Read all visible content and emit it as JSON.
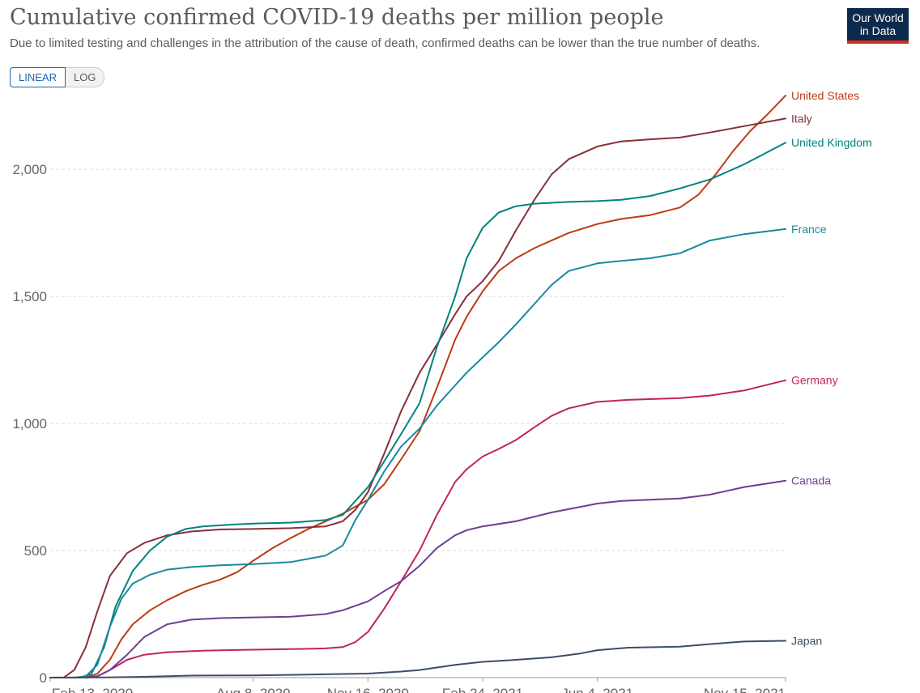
{
  "header": {
    "title": "Cumulative confirmed COVID-19 deaths per million people",
    "subtitle": "Due to limited testing and challenges in the attribution of the cause of death, confirmed deaths can be lower than the true number of deaths.",
    "logo_line1": "Our World",
    "logo_line2": "in Data"
  },
  "controls": {
    "linear_label": "LINEAR",
    "log_label": "LOG",
    "selected": "LINEAR"
  },
  "chart_data": {
    "type": "line",
    "title": "Cumulative confirmed COVID-19 deaths per million people",
    "ylim": [
      0,
      2300
    ],
    "xlim": [
      "2020-02-13",
      "2021-11-15"
    ],
    "yticks": [
      0,
      500,
      1000,
      1500,
      2000
    ],
    "ytick_labels": [
      "0",
      "500",
      "1,000",
      "1,500",
      "2,000"
    ],
    "xticks": [
      "2020-02-13",
      "2020-08-08",
      "2020-11-16",
      "2021-02-24",
      "2021-06-04",
      "2021-11-15"
    ],
    "xtick_labels": [
      "Feb 13, 2020",
      "Aug 8, 2020",
      "Nov 16, 2020",
      "Feb 24, 2021",
      "Jun 4, 2021",
      "Nov 15, 2021"
    ],
    "grid": "horizontal",
    "legend": "right-inline",
    "series": [
      {
        "name": "United States",
        "color": "#be3b14",
        "points": [
          [
            "2020-02-13",
            0
          ],
          [
            "2020-03-01",
            0
          ],
          [
            "2020-03-15",
            1
          ],
          [
            "2020-03-25",
            15
          ],
          [
            "2020-04-05",
            70
          ],
          [
            "2020-04-15",
            150
          ],
          [
            "2020-04-25",
            210
          ],
          [
            "2020-05-10",
            265
          ],
          [
            "2020-05-25",
            305
          ],
          [
            "2020-06-10",
            340
          ],
          [
            "2020-06-25",
            365
          ],
          [
            "2020-07-10",
            385
          ],
          [
            "2020-07-25",
            415
          ],
          [
            "2020-08-08",
            460
          ],
          [
            "2020-08-25",
            510
          ],
          [
            "2020-09-10",
            550
          ],
          [
            "2020-09-25",
            585
          ],
          [
            "2020-10-10",
            615
          ],
          [
            "2020-10-25",
            645
          ],
          [
            "2020-11-16",
            700
          ],
          [
            "2020-11-30",
            760
          ],
          [
            "2020-12-15",
            860
          ],
          [
            "2020-12-31",
            970
          ],
          [
            "2021-01-15",
            1140
          ],
          [
            "2021-01-31",
            1330
          ],
          [
            "2021-02-10",
            1420
          ],
          [
            "2021-02-24",
            1520
          ],
          [
            "2021-03-10",
            1600
          ],
          [
            "2021-03-25",
            1650
          ],
          [
            "2021-04-10",
            1690
          ],
          [
            "2021-04-25",
            1720
          ],
          [
            "2021-05-10",
            1750
          ],
          [
            "2021-06-04",
            1785
          ],
          [
            "2021-06-25",
            1805
          ],
          [
            "2021-07-20",
            1820
          ],
          [
            "2021-08-15",
            1850
          ],
          [
            "2021-08-31",
            1900
          ],
          [
            "2021-09-15",
            1980
          ],
          [
            "2021-09-30",
            2070
          ],
          [
            "2021-10-15",
            2150
          ],
          [
            "2021-10-31",
            2220
          ],
          [
            "2021-11-15",
            2290
          ]
        ]
      },
      {
        "name": "Italy",
        "color": "#883039",
        "points": [
          [
            "2020-02-13",
            0
          ],
          [
            "2020-02-25",
            1
          ],
          [
            "2020-03-05",
            30
          ],
          [
            "2020-03-15",
            120
          ],
          [
            "2020-03-25",
            260
          ],
          [
            "2020-04-05",
            400
          ],
          [
            "2020-04-20",
            490
          ],
          [
            "2020-05-05",
            530
          ],
          [
            "2020-05-25",
            560
          ],
          [
            "2020-06-15",
            575
          ],
          [
            "2020-07-10",
            583
          ],
          [
            "2020-08-08",
            585
          ],
          [
            "2020-09-10",
            588
          ],
          [
            "2020-10-10",
            595
          ],
          [
            "2020-10-25",
            615
          ],
          [
            "2020-11-05",
            660
          ],
          [
            "2020-11-16",
            730
          ],
          [
            "2020-11-30",
            880
          ],
          [
            "2020-12-15",
            1050
          ],
          [
            "2020-12-31",
            1200
          ],
          [
            "2021-01-15",
            1310
          ],
          [
            "2021-01-31",
            1430
          ],
          [
            "2021-02-10",
            1500
          ],
          [
            "2021-02-24",
            1560
          ],
          [
            "2021-03-10",
            1640
          ],
          [
            "2021-03-25",
            1760
          ],
          [
            "2021-04-10",
            1880
          ],
          [
            "2021-04-25",
            1980
          ],
          [
            "2021-05-10",
            2040
          ],
          [
            "2021-06-04",
            2090
          ],
          [
            "2021-06-25",
            2110
          ],
          [
            "2021-07-20",
            2118
          ],
          [
            "2021-08-15",
            2125
          ],
          [
            "2021-09-10",
            2145
          ],
          [
            "2021-10-10",
            2170
          ],
          [
            "2021-11-15",
            2200
          ]
        ]
      },
      {
        "name": "United Kingdom",
        "color": "#00847e",
        "points": [
          [
            "2020-02-13",
            0
          ],
          [
            "2020-03-10",
            0
          ],
          [
            "2020-03-20",
            15
          ],
          [
            "2020-03-31",
            120
          ],
          [
            "2020-04-10",
            280
          ],
          [
            "2020-04-25",
            420
          ],
          [
            "2020-05-10",
            500
          ],
          [
            "2020-05-25",
            555
          ],
          [
            "2020-06-10",
            585
          ],
          [
            "2020-06-25",
            595
          ],
          [
            "2020-07-20",
            602
          ],
          [
            "2020-08-08",
            606
          ],
          [
            "2020-09-10",
            610
          ],
          [
            "2020-10-10",
            620
          ],
          [
            "2020-10-25",
            640
          ],
          [
            "2020-11-16",
            750
          ],
          [
            "2020-11-30",
            850
          ],
          [
            "2020-12-15",
            960
          ],
          [
            "2020-12-31",
            1080
          ],
          [
            "2021-01-15",
            1300
          ],
          [
            "2021-01-31",
            1500
          ],
          [
            "2021-02-10",
            1650
          ],
          [
            "2021-02-24",
            1770
          ],
          [
            "2021-03-10",
            1830
          ],
          [
            "2021-03-25",
            1855
          ],
          [
            "2021-04-10",
            1865
          ],
          [
            "2021-05-10",
            1872
          ],
          [
            "2021-06-04",
            1875
          ],
          [
            "2021-06-25",
            1880
          ],
          [
            "2021-07-20",
            1895
          ],
          [
            "2021-08-15",
            1925
          ],
          [
            "2021-09-10",
            1960
          ],
          [
            "2021-10-10",
            2020
          ],
          [
            "2021-11-15",
            2105
          ]
        ]
      },
      {
        "name": "France",
        "color": "#18899e",
        "points": [
          [
            "2020-02-13",
            0
          ],
          [
            "2020-03-05",
            0
          ],
          [
            "2020-03-15",
            5
          ],
          [
            "2020-03-25",
            50
          ],
          [
            "2020-04-05",
            200
          ],
          [
            "2020-04-15",
            310
          ],
          [
            "2020-04-25",
            370
          ],
          [
            "2020-05-10",
            405
          ],
          [
            "2020-05-25",
            425
          ],
          [
            "2020-06-15",
            435
          ],
          [
            "2020-07-10",
            442
          ],
          [
            "2020-08-08",
            447
          ],
          [
            "2020-09-10",
            455
          ],
          [
            "2020-10-10",
            480
          ],
          [
            "2020-10-25",
            520
          ],
          [
            "2020-11-05",
            620
          ],
          [
            "2020-11-16",
            700
          ],
          [
            "2020-11-30",
            810
          ],
          [
            "2020-12-15",
            910
          ],
          [
            "2020-12-31",
            980
          ],
          [
            "2021-01-15",
            1070
          ],
          [
            "2021-01-31",
            1150
          ],
          [
            "2021-02-10",
            1200
          ],
          [
            "2021-02-24",
            1260
          ],
          [
            "2021-03-10",
            1320
          ],
          [
            "2021-03-25",
            1390
          ],
          [
            "2021-04-10",
            1470
          ],
          [
            "2021-04-25",
            1545
          ],
          [
            "2021-05-10",
            1600
          ],
          [
            "2021-06-04",
            1630
          ],
          [
            "2021-06-25",
            1640
          ],
          [
            "2021-07-20",
            1650
          ],
          [
            "2021-08-15",
            1670
          ],
          [
            "2021-09-10",
            1720
          ],
          [
            "2021-10-10",
            1745
          ],
          [
            "2021-11-15",
            1765
          ]
        ]
      },
      {
        "name": "Germany",
        "color": "#c0235f",
        "points": [
          [
            "2020-02-13",
            0
          ],
          [
            "2020-03-15",
            0
          ],
          [
            "2020-03-25",
            5
          ],
          [
            "2020-04-05",
            30
          ],
          [
            "2020-04-20",
            70
          ],
          [
            "2020-05-05",
            90
          ],
          [
            "2020-05-25",
            100
          ],
          [
            "2020-06-25",
            106
          ],
          [
            "2020-08-08",
            110
          ],
          [
            "2020-09-10",
            112
          ],
          [
            "2020-10-10",
            115
          ],
          [
            "2020-10-25",
            120
          ],
          [
            "2020-11-05",
            140
          ],
          [
            "2020-11-16",
            180
          ],
          [
            "2020-11-30",
            270
          ],
          [
            "2020-12-15",
            380
          ],
          [
            "2020-12-31",
            500
          ],
          [
            "2021-01-15",
            640
          ],
          [
            "2021-01-31",
            770
          ],
          [
            "2021-02-10",
            820
          ],
          [
            "2021-02-24",
            870
          ],
          [
            "2021-03-10",
            900
          ],
          [
            "2021-03-25",
            935
          ],
          [
            "2021-04-10",
            985
          ],
          [
            "2021-04-25",
            1030
          ],
          [
            "2021-05-10",
            1060
          ],
          [
            "2021-06-04",
            1085
          ],
          [
            "2021-07-01",
            1093
          ],
          [
            "2021-08-15",
            1100
          ],
          [
            "2021-09-10",
            1110
          ],
          [
            "2021-10-10",
            1130
          ],
          [
            "2021-11-15",
            1170
          ]
        ]
      },
      {
        "name": "Canada",
        "color": "#6d3e91",
        "points": [
          [
            "2020-02-13",
            0
          ],
          [
            "2020-03-15",
            0
          ],
          [
            "2020-03-25",
            5
          ],
          [
            "2020-04-05",
            30
          ],
          [
            "2020-04-20",
            90
          ],
          [
            "2020-05-05",
            160
          ],
          [
            "2020-05-25",
            210
          ],
          [
            "2020-06-15",
            228
          ],
          [
            "2020-07-10",
            234
          ],
          [
            "2020-08-08",
            237
          ],
          [
            "2020-09-10",
            240
          ],
          [
            "2020-10-10",
            250
          ],
          [
            "2020-10-25",
            265
          ],
          [
            "2020-11-16",
            300
          ],
          [
            "2020-11-30",
            340
          ],
          [
            "2020-12-15",
            380
          ],
          [
            "2020-12-31",
            440
          ],
          [
            "2021-01-15",
            510
          ],
          [
            "2021-01-31",
            560
          ],
          [
            "2021-02-10",
            580
          ],
          [
            "2021-02-24",
            595
          ],
          [
            "2021-03-25",
            615
          ],
          [
            "2021-04-25",
            650
          ],
          [
            "2021-06-04",
            685
          ],
          [
            "2021-06-25",
            695
          ],
          [
            "2021-07-20",
            700
          ],
          [
            "2021-08-15",
            705
          ],
          [
            "2021-09-10",
            720
          ],
          [
            "2021-10-10",
            750
          ],
          [
            "2021-11-15",
            775
          ]
        ]
      },
      {
        "name": "Japan",
        "color": "#3c4e66",
        "points": [
          [
            "2020-02-13",
            0
          ],
          [
            "2020-03-31",
            1
          ],
          [
            "2020-04-30",
            3
          ],
          [
            "2020-06-15",
            8
          ],
          [
            "2020-08-08",
            9
          ],
          [
            "2020-10-10",
            13
          ],
          [
            "2020-11-16",
            16
          ],
          [
            "2020-12-15",
            24
          ],
          [
            "2020-12-31",
            30
          ],
          [
            "2021-01-31",
            50
          ],
          [
            "2021-02-24",
            62
          ],
          [
            "2021-03-25",
            70
          ],
          [
            "2021-04-25",
            80
          ],
          [
            "2021-05-20",
            95
          ],
          [
            "2021-06-04",
            108
          ],
          [
            "2021-07-01",
            118
          ],
          [
            "2021-08-15",
            122
          ],
          [
            "2021-09-10",
            132
          ],
          [
            "2021-10-10",
            142
          ],
          [
            "2021-11-15",
            145
          ]
        ]
      }
    ]
  }
}
